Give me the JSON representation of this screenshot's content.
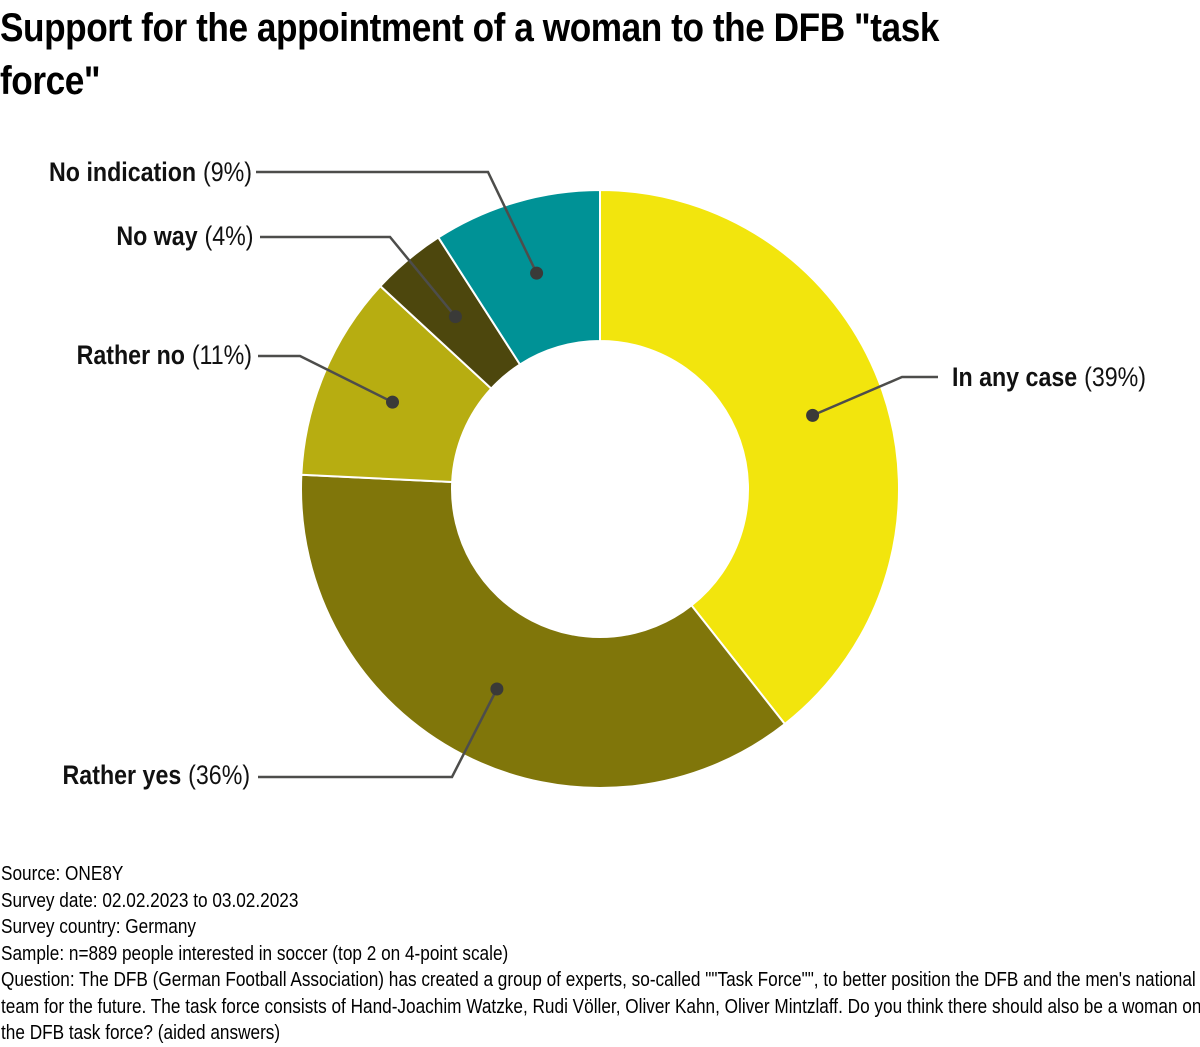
{
  "title": "Support for the appointment of a woman to the DFB \"task force\"",
  "title_lines": [
    "Support for the appointment of a woman to the DFB \"task",
    "force\""
  ],
  "chart_data": {
    "type": "pie",
    "variant": "donut",
    "title": "Support for the appointment of a woman to the DFB \"task force\"",
    "unit": "%",
    "start_position": "12 o'clock",
    "direction": "clockwise",
    "donut_hole_ratio": 0.49,
    "legend_position": "none (leader-line labels)",
    "slices": [
      {
        "label": "In any case",
        "value": 39,
        "pct_text": "(39%)",
        "color": "#F2E50D"
      },
      {
        "label": "Rather yes",
        "value": 36,
        "pct_text": "(36%)",
        "color": "#80760A"
      },
      {
        "label": "Rather no",
        "value": 11,
        "pct_text": "(11%)",
        "color": "#B7AD11"
      },
      {
        "label": "No way",
        "value": 4,
        "pct_text": "(4%)",
        "color": "#4D470D"
      },
      {
        "label": "No indication",
        "value": 9,
        "pct_text": "(9%)",
        "color": "#009296"
      }
    ],
    "leader_line_color": "#4D4D4B",
    "dot_color": "#3A3A38",
    "slice_separator_color": "#FFFFFF",
    "background": "#FFFFFF"
  },
  "footer": {
    "source": "Source: ONE8Y",
    "survey_date": "Survey date: 02.02.2023 to 03.02.2023",
    "survey_country": "Survey country: Germany",
    "sample": "Sample: n=889 people interested in soccer (top 2 on 4-point scale)",
    "question": "Question: The DFB (German Football Association) has created a group of experts, so-called \"\"Task Force\"\", to better position the DFB and the men's national team for the future. The task force consists of Hand-Joachim Watzke, Rudi Völler, Oliver Kahn, Oliver Mintzlaff. Do you think there should also be a woman on the DFB task force? (aided answers)"
  }
}
